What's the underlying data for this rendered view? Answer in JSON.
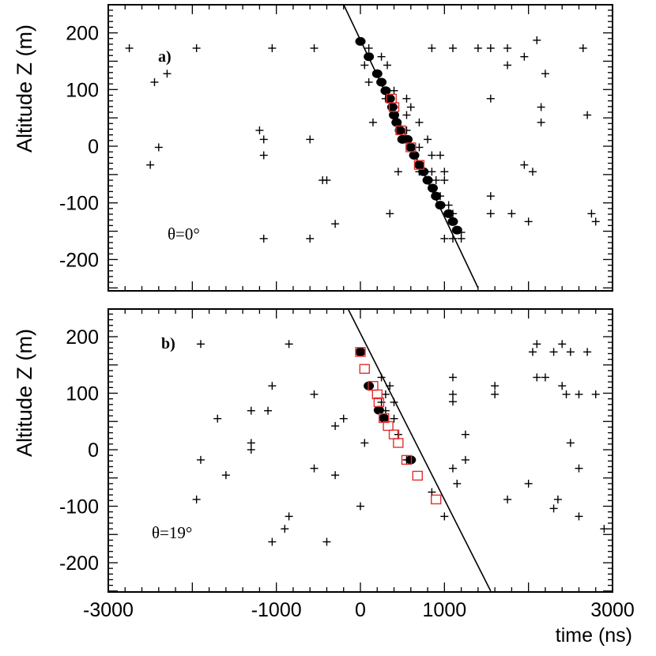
{
  "chart_data": [
    {
      "type": "scatter",
      "panel_label": "a)",
      "angle_label": "θ=0°",
      "ylabel": "Altitude Z (m)",
      "xlabel": "",
      "xlim": [
        -3000,
        3000
      ],
      "ylim": [
        -250,
        250
      ],
      "yticks": [
        "200",
        "100",
        "0",
        "-100",
        "-200"
      ],
      "ytick_values": [
        200,
        100,
        0,
        -100,
        -200
      ],
      "xticks": [],
      "fit_line": [
        {
          "x": -200,
          "y": 250
        },
        {
          "x": 1400,
          "y": -250
        }
      ],
      "series": [
        {
          "name": "hits (+)",
          "marker": "plus",
          "points": [
            [
              -2750,
              173
            ],
            [
              -1950,
              173
            ],
            [
              -1050,
              173
            ],
            [
              -550,
              173
            ],
            [
              -2450,
              113
            ],
            [
              -2300,
              128
            ],
            [
              -1200,
              28
            ],
            [
              -1150,
              12
            ],
            [
              -1150,
              -16
            ],
            [
              -2500,
              -33
            ],
            [
              -2400,
              -2
            ],
            [
              -600,
              12
            ],
            [
              -450,
              -60
            ],
            [
              -400,
              -60
            ],
            [
              -1150,
              -163
            ],
            [
              -600,
              -163
            ],
            [
              -300,
              -137
            ],
            [
              100,
              173
            ],
            [
              250,
              158
            ],
            [
              50,
              143
            ],
            [
              320,
              143
            ],
            [
              100,
              113
            ],
            [
              400,
              98
            ],
            [
              300,
              84
            ],
            [
              550,
              84
            ],
            [
              400,
              69
            ],
            [
              600,
              69
            ],
            [
              550,
              55
            ],
            [
              150,
              42
            ],
            [
              700,
              42
            ],
            [
              550,
              28
            ],
            [
              800,
              12
            ],
            [
              700,
              -2
            ],
            [
              850,
              -16
            ],
            [
              950,
              -16
            ],
            [
              700,
              -45
            ],
            [
              850,
              -45
            ],
            [
              1000,
              -45
            ],
            [
              450,
              -45
            ],
            [
              900,
              -60
            ],
            [
              1000,
              -60
            ],
            [
              850,
              -74
            ],
            [
              950,
              -88
            ],
            [
              1050,
              -104
            ],
            [
              1100,
              -119
            ],
            [
              350,
              -119
            ],
            [
              1200,
              -152
            ],
            [
              1000,
              -163
            ],
            [
              1100,
              -163
            ],
            [
              1200,
              -163
            ],
            [
              850,
              173
            ],
            [
              1100,
              173
            ],
            [
              1400,
              173
            ],
            [
              1550,
              173
            ],
            [
              1750,
              173
            ],
            [
              2100,
              187
            ],
            [
              1950,
              158
            ],
            [
              2650,
              173
            ],
            [
              1750,
              143
            ],
            [
              2200,
              128
            ],
            [
              1550,
              84
            ],
            [
              2150,
              69
            ],
            [
              2150,
              42
            ],
            [
              2700,
              55
            ],
            [
              1950,
              -33
            ],
            [
              2050,
              -45
            ],
            [
              1550,
              -88
            ],
            [
              1550,
              -119
            ],
            [
              1800,
              -119
            ],
            [
              2000,
              -133
            ],
            [
              2750,
              -119
            ],
            [
              2800,
              -133
            ]
          ]
        },
        {
          "name": "hits on track (●)",
          "marker": "dot",
          "points": [
            [
              0,
              185
            ],
            [
              100,
              158
            ],
            [
              200,
              128
            ],
            [
              250,
              113
            ],
            [
              300,
              98
            ],
            [
              350,
              84
            ],
            [
              380,
              69
            ],
            [
              400,
              55
            ],
            [
              430,
              42
            ],
            [
              470,
              28
            ],
            [
              500,
              12
            ],
            [
              560,
              12
            ],
            [
              600,
              -2
            ],
            [
              640,
              -16
            ],
            [
              700,
              -33
            ],
            [
              750,
              -45
            ],
            [
              800,
              -60
            ],
            [
              860,
              -74
            ],
            [
              900,
              -88
            ],
            [
              950,
              -104
            ],
            [
              1050,
              -119
            ],
            [
              1100,
              -133
            ],
            [
              1150,
              -148
            ]
          ]
        },
        {
          "name": "selected hits (□)",
          "marker": "square",
          "points": [
            [
              370,
              84
            ],
            [
              400,
              69
            ],
            [
              480,
              28
            ],
            [
              600,
              -2
            ],
            [
              700,
              -33
            ]
          ]
        }
      ]
    },
    {
      "type": "scatter",
      "panel_label": "b)",
      "angle_label": "θ=19°",
      "ylabel": "Altitude Z (m)",
      "xlabel": "time (ns)",
      "xlim": [
        -3000,
        3000
      ],
      "ylim": [
        -250,
        250
      ],
      "yticks": [
        "200",
        "100",
        "0",
        "-100",
        "-200"
      ],
      "ytick_values": [
        200,
        100,
        0,
        -100,
        -200
      ],
      "xticks": [
        "-3000",
        "-1000",
        "0",
        "1000",
        "3000"
      ],
      "xtick_values": [
        -3000,
        -1000,
        0,
        1000,
        3000
      ],
      "fit_line": [
        {
          "x": -150,
          "y": 250
        },
        {
          "x": 1550,
          "y": -250
        }
      ],
      "series": [
        {
          "name": "hits (+)",
          "marker": "plus",
          "points": [
            [
              -1900,
              187
            ],
            [
              -850,
              187
            ],
            [
              -1050,
              113
            ],
            [
              -550,
              98
            ],
            [
              -1700,
              55
            ],
            [
              -1300,
              69
            ],
            [
              -1100,
              69
            ],
            [
              -1300,
              12
            ],
            [
              -1300,
              0
            ],
            [
              -1900,
              -18
            ],
            [
              -1600,
              -45
            ],
            [
              -550,
              -33
            ],
            [
              -300,
              -45
            ],
            [
              -300,
              42
            ],
            [
              -200,
              55
            ],
            [
              -1950,
              -88
            ],
            [
              -850,
              -118
            ],
            [
              -900,
              -140
            ],
            [
              -1050,
              -163
            ],
            [
              -400,
              -163
            ],
            [
              0,
              -100
            ],
            [
              50,
              12
            ],
            [
              250,
              128
            ],
            [
              350,
              113
            ],
            [
              300,
              98
            ],
            [
              250,
              84
            ],
            [
              400,
              84
            ],
            [
              300,
              69
            ],
            [
              400,
              55
            ],
            [
              450,
              27
            ],
            [
              550,
              -18
            ],
            [
              600,
              -18
            ],
            [
              850,
              -75
            ],
            [
              1000,
              -118
            ],
            [
              1100,
              -33
            ],
            [
              1100,
              128
            ],
            [
              1100,
              98
            ],
            [
              1100,
              85
            ],
            [
              1250,
              27
            ],
            [
              1250,
              -18
            ],
            [
              1150,
              -60
            ],
            [
              1600,
              113
            ],
            [
              1600,
              98
            ],
            [
              1750,
              -88
            ],
            [
              2000,
              -60
            ],
            [
              2100,
              128
            ],
            [
              2200,
              128
            ],
            [
              2050,
              173
            ],
            [
              2100,
              187
            ],
            [
              2300,
              173
            ],
            [
              2400,
              187
            ],
            [
              2500,
              173
            ],
            [
              2700,
              173
            ],
            [
              2450,
              98
            ],
            [
              2400,
              113
            ],
            [
              2600,
              98
            ],
            [
              2800,
              98
            ],
            [
              2500,
              12
            ],
            [
              2600,
              -33
            ],
            [
              2350,
              -88
            ],
            [
              2300,
              -104
            ],
            [
              2600,
              -118
            ],
            [
              2900,
              -140
            ]
          ]
        },
        {
          "name": "hits on track (●)",
          "marker": "dot",
          "points": [
            [
              0,
              173
            ],
            [
              100,
              113
            ],
            [
              220,
              70
            ],
            [
              280,
              56
            ],
            [
              600,
              -18
            ]
          ]
        },
        {
          "name": "selected hits (□)",
          "marker": "square",
          "points": [
            [
              0,
              173
            ],
            [
              50,
              143
            ],
            [
              150,
              113
            ],
            [
              200,
              98
            ],
            [
              220,
              84
            ],
            [
              280,
              56
            ],
            [
              330,
              42
            ],
            [
              400,
              27
            ],
            [
              450,
              12
            ],
            [
              550,
              -18
            ],
            [
              680,
              -46
            ],
            [
              900,
              -88
            ]
          ]
        }
      ]
    }
  ]
}
